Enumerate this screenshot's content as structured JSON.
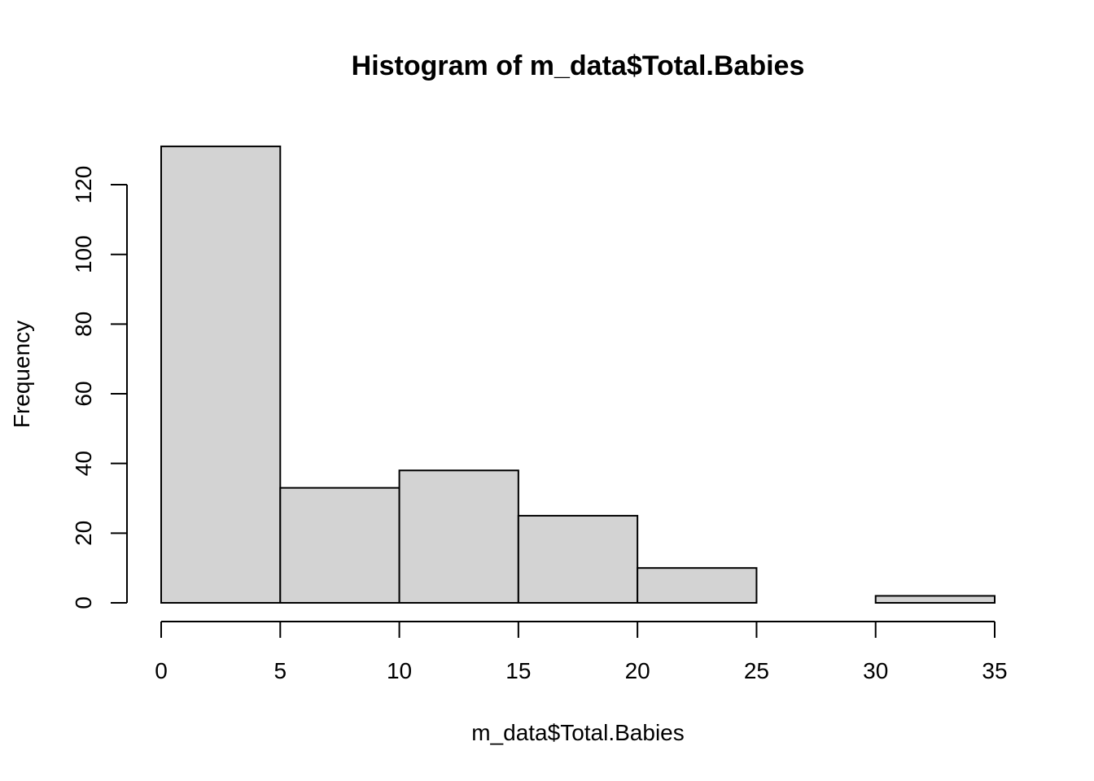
{
  "chart_data": {
    "type": "bar",
    "title": "Histogram of m_data$Total.Babies",
    "xlabel": "m_data$Total.Babies",
    "ylabel": "Frequency",
    "bins": [
      {
        "start": 0,
        "end": 5,
        "count": 131
      },
      {
        "start": 5,
        "end": 10,
        "count": 33
      },
      {
        "start": 10,
        "end": 15,
        "count": 38
      },
      {
        "start": 15,
        "end": 20,
        "count": 25
      },
      {
        "start": 20,
        "end": 25,
        "count": 10
      },
      {
        "start": 25,
        "end": 30,
        "count": 0
      },
      {
        "start": 30,
        "end": 35,
        "count": 2
      }
    ],
    "xlim": [
      0,
      35
    ],
    "ylim": [
      0,
      131
    ],
    "x_ticks": [
      0,
      5,
      10,
      15,
      20,
      25,
      30,
      35
    ],
    "y_ticks": [
      0,
      20,
      40,
      60,
      80,
      100,
      120
    ],
    "colors": {
      "bar_fill": "#d3d3d3",
      "bar_stroke": "#000000"
    },
    "grid": false,
    "legend": "none"
  }
}
